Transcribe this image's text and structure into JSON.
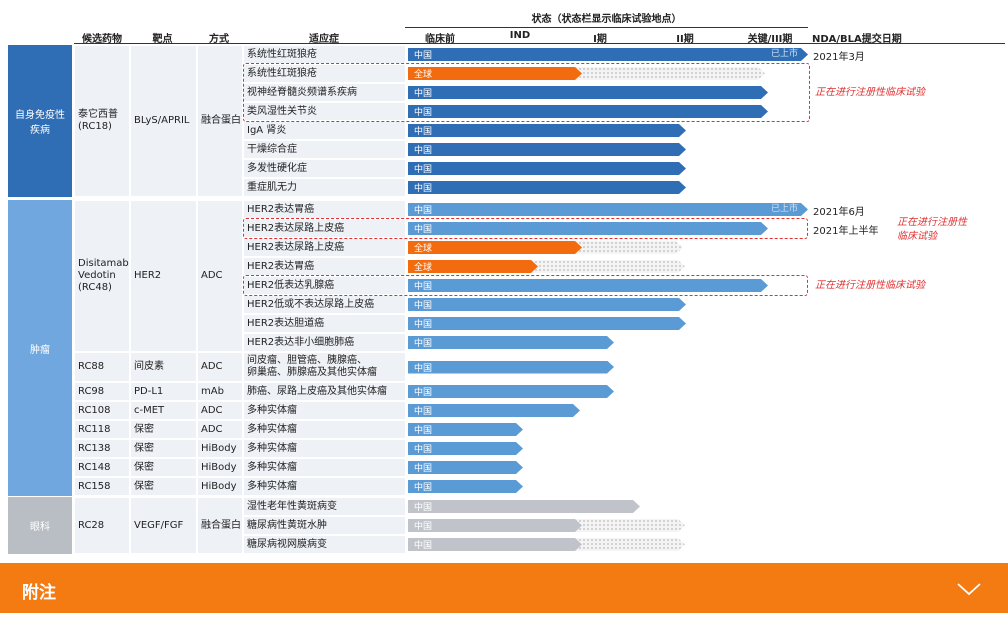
{
  "header": {
    "status_title": "状态（状态栏显示临床试验地点）",
    "columns": [
      "候选药物",
      "靶点",
      "方式",
      "适应症"
    ],
    "stages": [
      "临床前",
      "IND",
      "I期",
      "II期",
      "关键/III期"
    ],
    "nda_title": "NDA/BLA提交日期"
  },
  "groups": [
    {
      "area": "自身免疫性疾病",
      "drugs": [
        {
          "name": "泰它西普\n(RC18)",
          "target": "BLyS/APRIL",
          "modality": "融合蛋白",
          "rows": [
            {
              "indication": "系统性红斑狼疮",
              "location": "中国",
              "status": "已上市",
              "nda": "2021年3月"
            },
            {
              "indication": "系统性红斑狼疮",
              "location": "全球"
            },
            {
              "indication": "视神经脊髓炎频谱系疾病",
              "location": "中国"
            },
            {
              "indication": "类风湿性关节炎",
              "location": "中国"
            },
            {
              "indication": "IgA 肾炎",
              "location": "中国"
            },
            {
              "indication": "干燥综合症",
              "location": "中国"
            },
            {
              "indication": "多发性硬化症",
              "location": "中国"
            },
            {
              "indication": "重症肌无力",
              "location": "中国"
            }
          ]
        }
      ]
    },
    {
      "area": "肿瘤",
      "drugs": [
        {
          "name": "Disitamab\nVedotin\n(RC48)",
          "target": "HER2",
          "modality": "ADC",
          "rows": [
            {
              "indication": "HER2表达胃癌",
              "location": "中国",
              "status": "已上市",
              "nda": "2021年6月"
            },
            {
              "indication": "HER2表达尿路上皮癌",
              "location": "中国",
              "nda": "2021年上半年"
            },
            {
              "indication": "HER2表达尿路上皮癌",
              "location": "全球"
            },
            {
              "indication": "HER2表达胃癌",
              "location": "全球"
            },
            {
              "indication": "HER2低表达乳腺癌",
              "location": "中国"
            },
            {
              "indication": "HER2低或不表达尿路上皮癌",
              "location": "中国"
            },
            {
              "indication": "HER2表达胆道癌",
              "location": "中国"
            },
            {
              "indication": "HER2表达非小细胞肺癌",
              "location": "中国"
            }
          ]
        },
        {
          "name": "RC88",
          "target": "间皮素",
          "modality": "ADC",
          "rows": [
            {
              "indication": "间皮瘤、胆管癌、胰腺癌、\n卵巢癌、肺腺癌及其他实体瘤",
              "location": "中国"
            }
          ]
        },
        {
          "name": "RC98",
          "target": "PD-L1",
          "modality": "mAb",
          "rows": [
            {
              "indication": "肺癌、尿路上皮癌及其他实体瘤",
              "location": "中国"
            }
          ]
        },
        {
          "name": "RC108",
          "target": "c-MET",
          "modality": "ADC",
          "rows": [
            {
              "indication": "多种实体瘤",
              "location": "中国"
            }
          ]
        },
        {
          "name": "RC118",
          "target": "保密",
          "modality": "ADC",
          "rows": [
            {
              "indication": "多种实体瘤",
              "location": "中国"
            }
          ]
        },
        {
          "name": "RC138",
          "target": "保密",
          "modality": "HiBody",
          "rows": [
            {
              "indication": "多种实体瘤",
              "location": "中国"
            }
          ]
        },
        {
          "name": "RC148",
          "target": "保密",
          "modality": "HiBody",
          "rows": [
            {
              "indication": "多种实体瘤",
              "location": "中国"
            }
          ]
        },
        {
          "name": "RC158",
          "target": "保密",
          "modality": "HiBody",
          "rows": [
            {
              "indication": "多种实体瘤",
              "location": "中国"
            }
          ]
        }
      ]
    },
    {
      "area": "眼科",
      "drugs": [
        {
          "name": "RC28",
          "target": "VEGF/FGF",
          "modality": "融合蛋白",
          "rows": [
            {
              "indication": "湿性老年性黄斑病变",
              "location": "中国"
            },
            {
              "indication": "糖尿病性黄斑水肿",
              "location": "中国"
            },
            {
              "indication": "糖尿病视网膜病变",
              "location": "中国"
            }
          ]
        }
      ]
    }
  ],
  "notes": [
    "正在进行注册性临床试验",
    "正在进行注册性\n临床试验",
    "正在进行注册性临床试验"
  ],
  "footer": {
    "title": "附注"
  }
}
